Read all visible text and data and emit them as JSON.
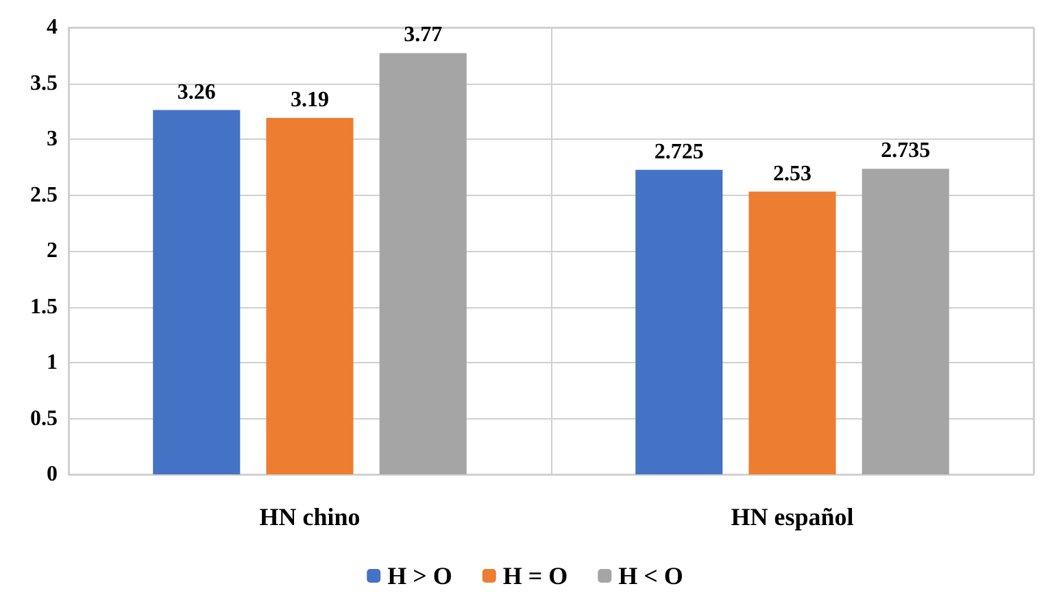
{
  "chart_data": {
    "type": "bar",
    "categories": [
      "HN chino",
      "HN español"
    ],
    "series": [
      {
        "name": "H > O",
        "color": "#4472c4",
        "values": [
          3.26,
          2.725
        ]
      },
      {
        "name": "H = O",
        "color": "#ed7d31",
        "values": [
          3.19,
          2.53
        ]
      },
      {
        "name": "H < O",
        "color": "#a5a5a5",
        "values": [
          3.77,
          2.735
        ]
      }
    ],
    "ylim": [
      0,
      4
    ],
    "yticks": [
      0,
      0.5,
      1,
      1.5,
      2,
      2.5,
      3,
      3.5,
      4
    ],
    "grid": true,
    "legend": "bottom",
    "data_labels": true
  }
}
